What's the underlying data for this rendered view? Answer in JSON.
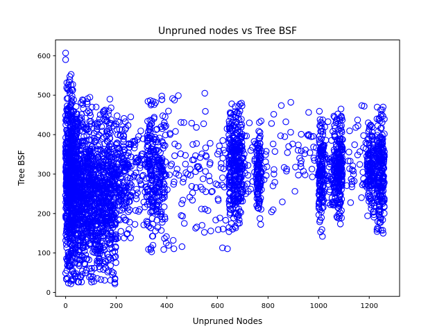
{
  "chart_data": {
    "type": "scatter",
    "title": "Unpruned nodes vs Tree BSF",
    "xlabel": "Unpruned Nodes",
    "ylabel": "Tree BSF",
    "xlim": [
      -40,
      1320
    ],
    "ylim": [
      -10,
      640
    ],
    "xticks": [
      0,
      200,
      400,
      600,
      800,
      1000,
      1200
    ],
    "yticks": [
      0,
      100,
      200,
      300,
      400,
      500,
      600
    ],
    "marker": "open-circle",
    "color": "#0000ff",
    "grid": false,
    "legend": "none",
    "clusters": [
      {
        "x_range": [
          0,
          30
        ],
        "y_range": [
          20,
          555
        ],
        "count": 520
      },
      {
        "x_range": [
          30,
          100
        ],
        "y_range": [
          25,
          495
        ],
        "count": 600
      },
      {
        "x_range": [
          100,
          200
        ],
        "y_range": [
          20,
          470
        ],
        "count": 620
      },
      {
        "x_range": [
          200,
          260
        ],
        "y_range": [
          130,
          460
        ],
        "count": 160
      },
      {
        "x_range": [
          260,
          320
        ],
        "y_range": [
          150,
          455
        ],
        "count": 50
      },
      {
        "x_range": [
          320,
          395
        ],
        "y_range": [
          105,
          500
        ],
        "count": 260
      },
      {
        "x_range": [
          395,
          640
        ],
        "y_range": [
          110,
          505
        ],
        "count": 110
      },
      {
        "x_range": [
          645,
          700
        ],
        "y_range": [
          150,
          480
        ],
        "count": 320
      },
      {
        "x_range": [
          700,
          760
        ],
        "y_range": [
          180,
          430
        ],
        "count": 30
      },
      {
        "x_range": [
          755,
          775
        ],
        "y_range": [
          165,
          440
        ],
        "count": 110
      },
      {
        "x_range": [
          780,
          1000
        ],
        "y_range": [
          190,
          485
        ],
        "count": 60
      },
      {
        "x_range": [
          1000,
          1020
        ],
        "y_range": [
          140,
          465
        ],
        "count": 140
      },
      {
        "x_range": [
          1020,
          1060
        ],
        "y_range": [
          200,
          440
        ],
        "count": 40
      },
      {
        "x_range": [
          1060,
          1080
        ],
        "y_range": [
          170,
          455
        ],
        "count": 110
      },
      {
        "x_range": [
          1080,
          1095
        ],
        "y_range": [
          165,
          470
        ],
        "count": 120
      },
      {
        "x_range": [
          1095,
          1190
        ],
        "y_range": [
          200,
          475
        ],
        "count": 35
      },
      {
        "x_range": [
          1190,
          1220
        ],
        "y_range": [
          190,
          430
        ],
        "count": 150
      },
      {
        "x_range": [
          1230,
          1260
        ],
        "y_range": [
          150,
          470
        ],
        "count": 220
      }
    ],
    "outliers": [
      {
        "x": 0,
        "y": 607
      },
      {
        "x": 0,
        "y": 590
      },
      {
        "x": 90,
        "y": 460
      },
      {
        "x": 175,
        "y": 490
      },
      {
        "x": 380,
        "y": 498
      },
      {
        "x": 550,
        "y": 505
      },
      {
        "x": 695,
        "y": 480
      },
      {
        "x": 890,
        "y": 482
      },
      {
        "x": 1180,
        "y": 472
      },
      {
        "x": 1255,
        "y": 470
      },
      {
        "x": 1255,
        "y": 150
      },
      {
        "x": 1015,
        "y": 142
      },
      {
        "x": 620,
        "y": 113
      },
      {
        "x": 460,
        "y": 116
      },
      {
        "x": 340,
        "y": 103
      }
    ]
  }
}
